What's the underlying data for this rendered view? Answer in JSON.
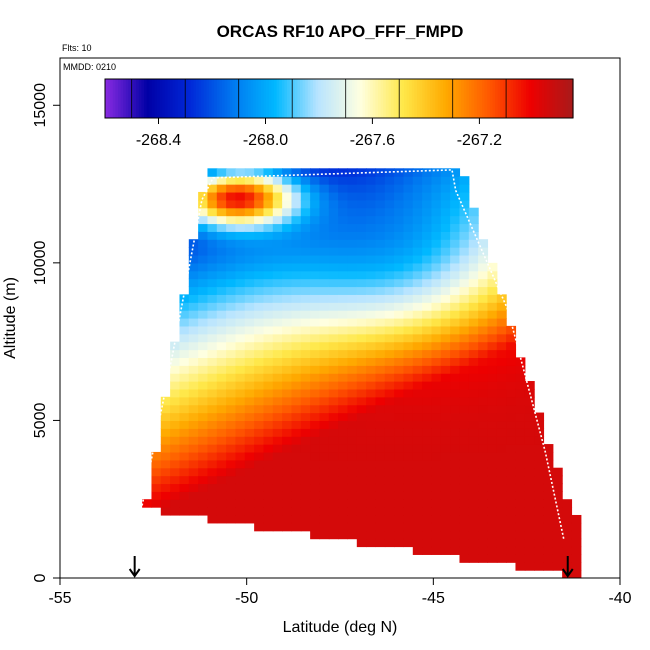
{
  "chart_data": {
    "type": "heatmap",
    "title": "ORCAS RF10 APO_FFF_FMPD",
    "flights_note": "Flts: 10",
    "date_note": "MMDD: 0210",
    "xlabel": "Latitude (deg N)",
    "ylabel": "Altitude (m)",
    "xlim": [
      -55,
      -40
    ],
    "ylim": [
      0,
      16500
    ],
    "xticks": [
      -55,
      -50,
      -45,
      -40
    ],
    "yticks": [
      0,
      5000,
      10000,
      15000
    ],
    "colorbar": {
      "range": [
        -268.6,
        -266.85
      ],
      "ticks": [
        -268.4,
        -268.0,
        -267.6,
        -267.2
      ],
      "tick_labels": [
        "-268.4",
        "-268.0",
        "-267.6",
        "-267.2"
      ],
      "colors": [
        "#8a2be2",
        "#0000a6",
        "#0028d8",
        "#0078f0",
        "#00b8ff",
        "#b8e4ff",
        "#ffffe0",
        "#ffe84a",
        "#ffaa00",
        "#ff5a00",
        "#ee0000",
        "#a81a1a"
      ]
    },
    "field_model": {
      "value_low_south": -267.0,
      "value_gradient_axis": "along slanted isopleths rising from south-low to north-high",
      "min_value": -268.45,
      "max_value": -266.95
    },
    "data_extent": {
      "southern_profile_lat": -52.8,
      "northern_profile_lat": -41.4,
      "max_altitude": 12900,
      "min_altitude_south": 2300,
      "min_altitude_north": 200
    },
    "flight_path": [
      {
        "lat": -52.8,
        "alt": 2300
      },
      {
        "lat": -52.0,
        "alt": 7000
      },
      {
        "lat": -51.2,
        "alt": 12000
      },
      {
        "lat": -50.9,
        "alt": 12700
      },
      {
        "lat": -44.5,
        "alt": 12950
      },
      {
        "lat": -44.4,
        "alt": 12300
      },
      {
        "lat": -43.0,
        "alt": 8500
      },
      {
        "lat": -42.0,
        "alt": 4000
      },
      {
        "lat": -41.5,
        "alt": 1200
      }
    ],
    "profile_markers": [
      {
        "lat": -53.0,
        "label": "down arrow"
      },
      {
        "lat": -41.4,
        "label": "down arrow"
      }
    ]
  }
}
